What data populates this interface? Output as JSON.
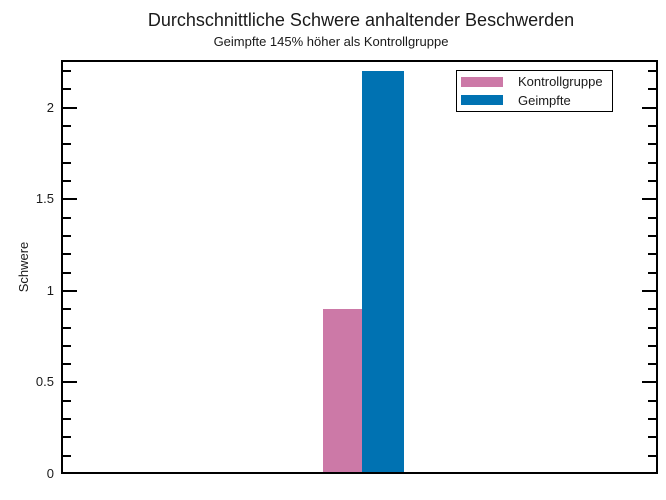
{
  "chart_data": {
    "type": "bar",
    "title": "Durchschnittliche Schwere anhaltender Beschwerden",
    "subtitle": "Geimpfte 145% höher als Kontrollgruppe",
    "xlabel": "",
    "ylabel": "Schwere",
    "ylim": [
      0,
      2.26
    ],
    "yticks": [
      0,
      0.5,
      1,
      1.5,
      2
    ],
    "ytick_labels": [
      "0",
      "0.5",
      "1",
      "1.5",
      "2"
    ],
    "minor_tick_step": 0.1,
    "grid": false,
    "legend_position": "top-right",
    "background_color": "#ffffff",
    "axis_color": "#000000",
    "categories": [
      "Kontrollgruppe",
      "Geimpfte"
    ],
    "series": [
      {
        "name": "Kontrollgruppe",
        "value": 0.9,
        "color": "#CC79A7"
      },
      {
        "name": "Geimpfte",
        "value": 2.2,
        "color": "#0072B2"
      }
    ]
  }
}
